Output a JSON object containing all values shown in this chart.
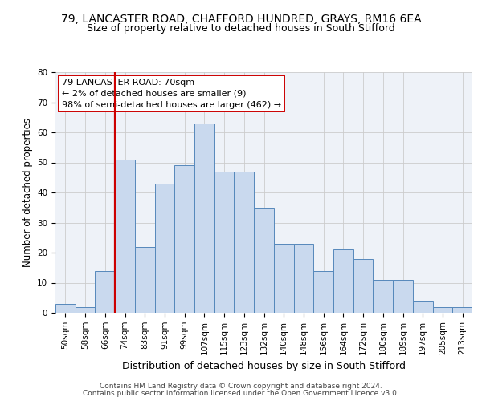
{
  "title1": "79, LANCASTER ROAD, CHAFFORD HUNDRED, GRAYS, RM16 6EA",
  "title2": "Size of property relative to detached houses in South Stifford",
  "xlabel": "Distribution of detached houses by size in South Stifford",
  "ylabel": "Number of detached properties",
  "categories": [
    "50sqm",
    "58sqm",
    "66sqm",
    "74sqm",
    "83sqm",
    "91sqm",
    "99sqm",
    "107sqm",
    "115sqm",
    "123sqm",
    "132sqm",
    "140sqm",
    "148sqm",
    "156sqm",
    "164sqm",
    "172sqm",
    "180sqm",
    "189sqm",
    "197sqm",
    "205sqm",
    "213sqm"
  ],
  "bar_heights": [
    3,
    2,
    14,
    51,
    22,
    43,
    49,
    63,
    47,
    47,
    35,
    23,
    23,
    14,
    21,
    18,
    11,
    11,
    4,
    2,
    2
  ],
  "bar_color": "#c9d9ee",
  "bar_edge_color": "#5588bb",
  "vline_x": 2.5,
  "vline_color": "#cc0000",
  "ylim": [
    0,
    80
  ],
  "yticks": [
    0,
    10,
    20,
    30,
    40,
    50,
    60,
    70,
    80
  ],
  "annotation_lines": [
    "79 LANCASTER ROAD: 70sqm",
    "← 2% of detached houses are smaller (9)",
    "98% of semi-detached houses are larger (462) →"
  ],
  "footer1": "Contains HM Land Registry data © Crown copyright and database right 2024.",
  "footer2": "Contains public sector information licensed under the Open Government Licence v3.0.",
  "grid_color": "#cccccc",
  "bg_color": "#eef2f8",
  "title1_fontsize": 10,
  "title2_fontsize": 9,
  "xlabel_fontsize": 9,
  "ylabel_fontsize": 8.5,
  "tick_fontsize": 7.5,
  "ann_fontsize": 8,
  "footer_fontsize": 6.5
}
